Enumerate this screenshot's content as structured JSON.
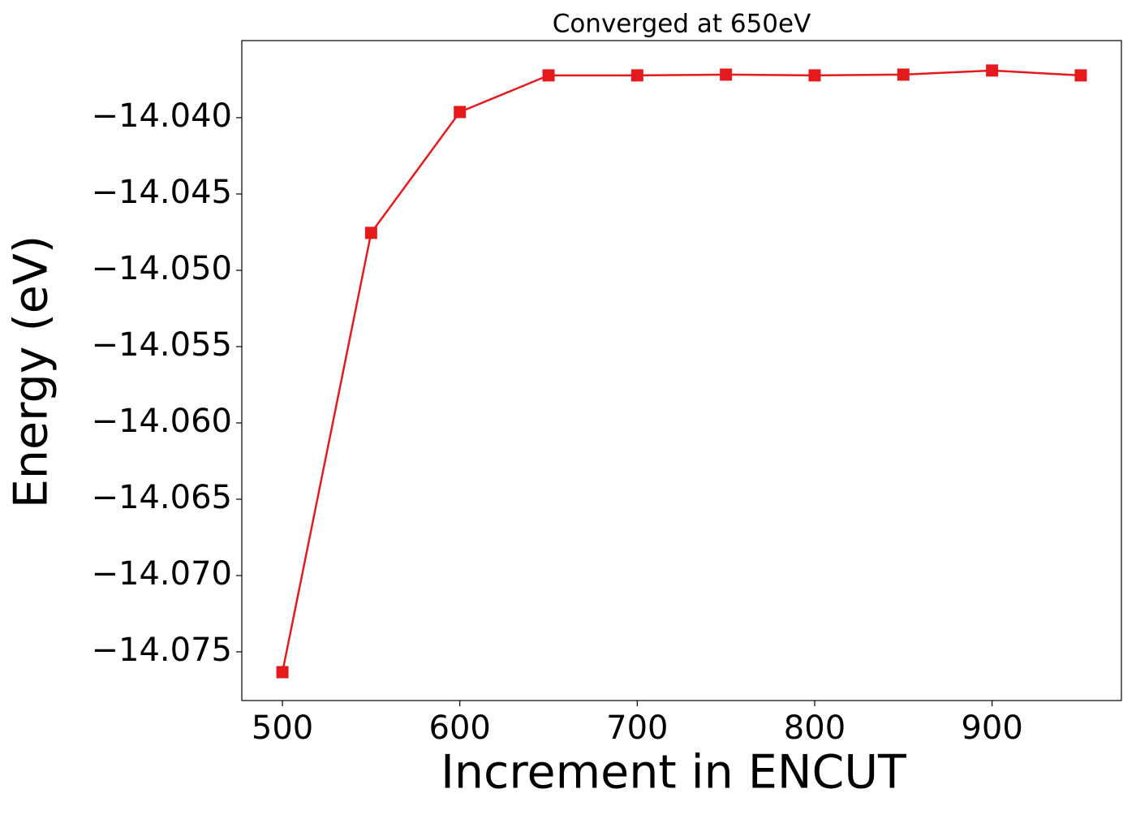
{
  "chart_data": {
    "type": "line",
    "title": "Converged at 650eV",
    "x_label": "Increment in ENCUT",
    "y_label": "Energy (eV)",
    "x": [
      500,
      550,
      600,
      650,
      700,
      750,
      800,
      850,
      900,
      950
    ],
    "series": [
      {
        "name": "Energy",
        "color": "#e41a1c",
        "marker": "square",
        "values": [
          -14.07633,
          -14.04755,
          -14.03963,
          -14.03723,
          -14.03723,
          -14.03718,
          -14.03723,
          -14.03718,
          -14.03691,
          -14.03723
        ]
      }
    ],
    "xlim": [
      477.1,
      972.9
    ],
    "ylim": [
      -14.07819,
      -14.03495
    ],
    "xticks": [
      500,
      600,
      700,
      800,
      900
    ],
    "yticks": [
      {
        "value": -14.04,
        "label": "−14.040"
      },
      {
        "value": -14.045,
        "label": "−14.045"
      },
      {
        "value": -14.05,
        "label": "−14.050"
      },
      {
        "value": -14.055,
        "label": "−14.055"
      },
      {
        "value": -14.06,
        "label": "−14.060"
      },
      {
        "value": -14.065,
        "label": "−14.065"
      },
      {
        "value": -14.07,
        "label": "−14.070"
      },
      {
        "value": -14.075,
        "label": "−14.075"
      }
    ],
    "grid": false,
    "legend": false
  }
}
